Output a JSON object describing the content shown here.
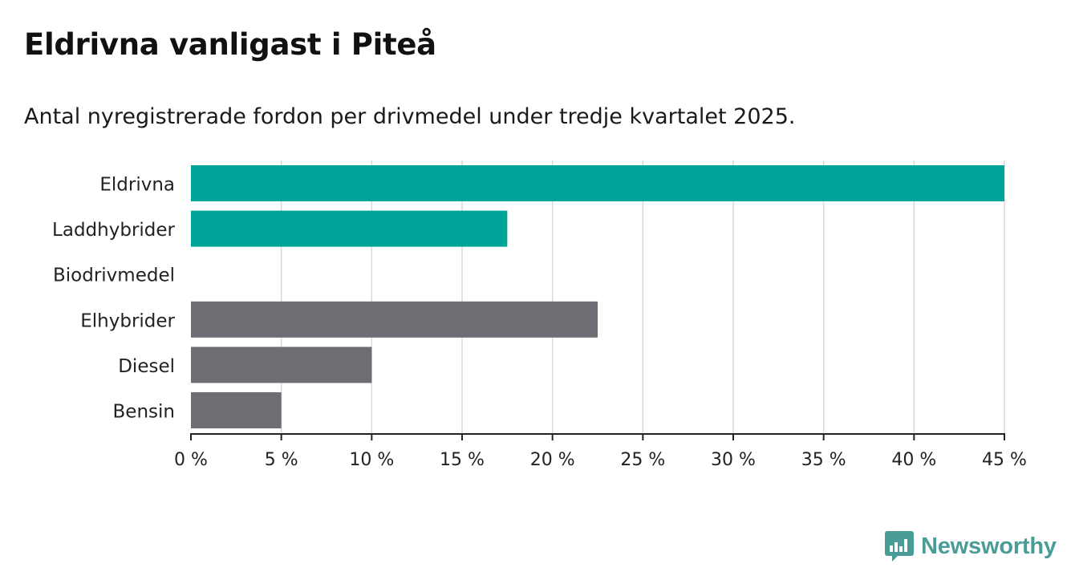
{
  "chart_data": {
    "type": "bar",
    "orientation": "horizontal",
    "title": "Eldrivna vanligast i Piteå",
    "subtitle": "Antal nyregistrerade fordon per drivmedel under tredje kvartalet 2025.",
    "categories": [
      "Eldrivna",
      "Laddhybrider",
      "Biodrivmedel",
      "Elhybrider",
      "Diesel",
      "Bensin"
    ],
    "values": [
      45,
      17.5,
      0,
      22.5,
      10,
      5
    ],
    "bar_colors": [
      "#00a499",
      "#00a499",
      "#00a499",
      "#6e6d73",
      "#6e6d73",
      "#6e6d73"
    ],
    "xlim": [
      0,
      45
    ],
    "xticks": [
      0,
      5,
      10,
      15,
      20,
      25,
      30,
      35,
      40,
      45
    ],
    "xtick_labels": [
      "0 %",
      "5 %",
      "10 %",
      "15 %",
      "20 %",
      "25 %",
      "30 %",
      "35 %",
      "40 %",
      "45 %"
    ],
    "xlabel": "",
    "ylabel": "",
    "grid": "vertical"
  },
  "brand": {
    "name": "Newsworthy",
    "color": "#4a9c97"
  }
}
